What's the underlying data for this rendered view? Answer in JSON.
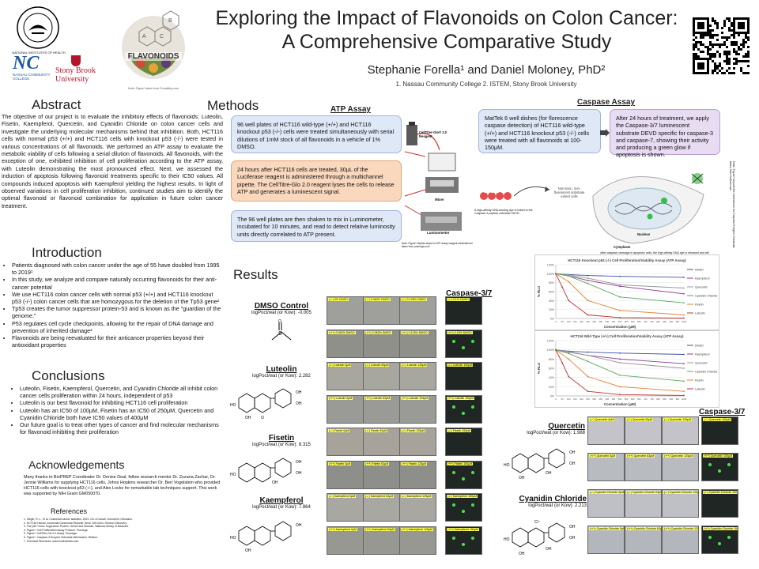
{
  "header": {
    "title_line1": "Exploring the Impact of Flavonoids on Colon Cancer:",
    "title_line2": "A Comprehensive Comparative Study",
    "authors": "Stephanie Forella¹ and Daniel Moloney, PhD²",
    "affiliations": "1.  Nassau Community College  2. ISTEM, Stony Brook University",
    "logo_nih": "NATIONAL INSTITUTES OF HEALTH",
    "logo_ncc_letters": "NC",
    "logo_ncc": "NASSAU COMMUNITY COLLEGE",
    "logo_sbu_line1": "Stony Brook",
    "logo_sbu_line2": "University",
    "logo_flavonoids": "FLAVONOIDS",
    "flavonoid_caption": "Note: Figure* taken from Freepikhq.com"
  },
  "abstract": {
    "heading": "Abstract",
    "text": "The objective of our project is to evaluate the inhibitory effects of flavonoids: Luteolin, Fisetin, Kaempferol, Quercetin, and Cyanidin Chloride on colon cancer cells and investigate the underlying molecular mechanisms behind that inhibition. Both, HCT116 cells with normal p53 (+/+) and HCT116 cells with knockout p53 (-/-) were tested in various concentrations of all flavonoids. We performed an ATP assay to evaluate the metabolic viability of cells following a serial dilution of flavonoids. All flavonoids, with the exception of one, exhibited inhibition of cell proliferation according to the ATP assay, with Luteolin demonstrating the most pronounced effect. Next, we assessed the induction of apoptosis following flavonoid treatments specific to their IC50 values. All compounds induced apoptosis with Kaempferol yielding the highest results. In light of observed variations in cell proliferation inhibition, continued studies aim to identify the optimal flavonoid or flavonoid combination for application in future colon cancer treatment."
  },
  "introduction": {
    "heading": "Introduction",
    "items": [
      "Patients diagnosed with colon cancer under the age of 55 have doubled from 1995 to 2019¹",
      "In this study, we analyze and compare naturally occurring flavonoids for their anti-cancer potential",
      "We use HCT116 colon cancer cells with normal p53 (+/+) and HCT116 knockout p53 (-/-) colon cancer cells that are homozygous for the deletion of the Tp53 gene²",
      "Tp53 creates the tumor suppressor protein-53 and is known as the \"guardian of the genome.\"",
      "P53 regulates cell cycle checkpoints, allowing for the repair of DNA damage and prevention of inherited damage³",
      "Flavonoids are being reevaluated for their anticancer properties beyond their antioxidant properties"
    ]
  },
  "conclusions": {
    "heading": "Conclusions",
    "items": [
      "Luteolin, Fisetin, Kaempferol, Quercetin, and Cyanidin Chloride all inhibit colon cancer cells proliferation within 24 hours, independent of p53",
      "Luteolin is our best flavonoid for inhibiting HCT116 cell proliferation",
      "Luteolin has an IC50 of 100μM, Fisetin has an IC50 of 250μM, Quercetin and Cyanidin Chloride both have IC50 values of 400μM",
      "Our future goal is to treat other types of cancer and find molecular mechanisms for flavonoid inhibiting their proliferation"
    ]
  },
  "acknowledgements": {
    "heading": "Acknowledgements",
    "text": "Many thanks to BioPREP Coordinator Dr. Denise Deal, fellow research mentor Dr. Zuzana Zachar, Dr. Jennie Williams for supplying HCT116 cells, Johns Hopkins researcher Dr. Bert Vogelstein who provided HCT116 cells with knockout p53 (-/-), and Alex Locke for remarkable lab techniques support. This work was supported by NIH Grant GM050070."
  },
  "references": {
    "heading": "References",
    "items": [
      "1. Siegel, R. L., et al. Colorectal cancer statistics, 2023. CA: A Cancer Journal for Clinicians.",
      "2. HCT116 Human Colorectal Carcinoma Reporter Gene Cell Lines. Horizon Discovery.",
      "3. The p53 Tumor Suppressor Protein. Genes and Disease. National Library of Medicine.",
      "4. Figure*: Cell Proliferation Assay Protocol. Promega.",
      "5. Figure*: CellTiter-Glo 2.0 Assay. Promega.",
      "6. Figure*: Caspase-3 Enzyme Substrate Mechanism. Biotium.",
      "7. Chemical Structures: www.molinstincts.com"
    ]
  },
  "methods": {
    "heading": "Methods",
    "atp_title": "ATP Assay",
    "step1": "96 well plates of HCT116 wild-type (+/+) and HCT116 knockout p53 (-/-) cells were treated simultaneously with serial dilutions of 1mM stock of all flavonoids in a vehicle of 1% DMSO.",
    "step2": "24 hours after HCT116 cells are treated, 30μL of the Luciferase reagent is administered through a multichannel pipette. The CellTitre-Glo 2.0 reagent lyses the cells to release ATP and generates a luminescent signal.",
    "step3": "The 96 well plates are then shaken to mix in Luminometer, incubated for 10 minutes, and read to detect relative luminosity units directly correlated to ATP present.",
    "reagent_label": "CellTiter-Glo® 2.0 Reagent",
    "mixer_label": "Mixer",
    "luminometer_label": "Luminometer",
    "atp_note": "Note: Figure* depicts steps for ATP assay reagent administered taken from promega.com",
    "caspase_title": "Caspase Assay",
    "caspase1": "MatTek 6 well dishes (for florescence caspase detection) of HCT116 wild-type (+/+) and HCT116 knockout p53 (-/-) cells were treated with all flavonoids at 100-150μM.",
    "caspase2": "After 24 hours of treatment, we apply the Caspase-3/7 luminescent substrate DEVD specific for caspase-3 and caspase-7, showing their activity and producing a green glow if apoptosis is shown.",
    "devd": "DEVD",
    "devd_caption": "A high-affinity DNA-binding dye is linked to the Caspase-3 peptide substrate DEVD",
    "nonfluor": "Non-toxic, non-fluorescent substrate enters cells",
    "nucleus": "Nucleus",
    "cytoplasm": "Cytoplasm",
    "after_cleavage": "After caspase cleavage in apoptotic cells, the high-affinity DNA dye is released and will fluoresce upon binding to DNA",
    "side_note": "Note: Figure* depicts the mechanism for Caspase Enzyme Substrate taken from biotium.com"
  },
  "results": {
    "heading": "Results",
    "caspase_header": "Caspase-3/7",
    "caspase_header2": "Caspase-3/7",
    "compounds": [
      {
        "name": "DMSO Control",
        "logp": "logPoct/wat (or Kow): -0.005"
      },
      {
        "name": "Luteolin",
        "logp": "logPoct/wat (or Kow): 2.282"
      },
      {
        "name": "Fisetin",
        "logp": "logPoct/wat (or Kow): 8.315"
      },
      {
        "name": "Kaempferol",
        "logp": "logPoct/wat (or Kow): 7.864"
      },
      {
        "name": "Quercetin",
        "logp": "logPoct/wat (or Kow): 1.988"
      },
      {
        "name": "Cyanidin Chloride",
        "logp": "logPoct/wat (or Kow): 2.213"
      }
    ],
    "rows": [
      [
        "(-/-) 0% DMSO",
        "(-/-) 0.063% DMSO",
        "(-/-) 0.125% DMSO",
        "(-/-) 0.1% DMSO"
      ],
      [
        "(+/+) 0.063% DMSO",
        "(+/+) 0.063% DMSO",
        "(+/+) 0.125% DMSO",
        "(+/+) 0.15% DMSO"
      ],
      [
        "(-/-) Luteolin 0μM",
        "(-/-) Luteolin 63μM",
        "(-/-) Luteolin 125μM",
        "(-/-) Luteolin 150μM"
      ],
      [
        "(+/+) Luteolin 0μM",
        "(+/+) Luteolin 63μM",
        "(+/+) Luteolin 125μM",
        "(+/+) Luteolin 100μM"
      ],
      [
        "(-/-) Fisetin 0μM",
        "(-/-) Fisetin 63μM",
        "(-/-) Fisetin 125μM",
        "(-/-) Fisetin 150μM"
      ],
      [
        "(+/+) Fisetin 0μM",
        "(+/+) Fisetin 63μM",
        "(+/+) Fisetin 125μM",
        "(+/+) Fisetin 150μM"
      ],
      [
        "(-/-) Kaempferol 0μM",
        "(-/-) Kaempferol 63μM",
        "(-/-) Kaempferol 125μM",
        "(-/-) Kaempferol 150μM"
      ],
      [
        "(+/+) Kaempferol 0μM",
        "(+/+) Kaempferol 63μM",
        "(+/+) Kaempferol 125μM",
        "(+/+) Kaempferol 150μM"
      ]
    ],
    "rows_right": [
      [
        "(-/-) Quercetin 0μM",
        "(-/-) Quercetin 63μM",
        "(-/-) Quercetin 125μM",
        "(-/-) Quercetin 150μM"
      ],
      [
        "(+/+) Quercetin 0μM",
        "(+/+) Quercetin 63μM",
        "(+/+) Quercetin 125μM",
        "(+/+) Quercetin 150μM"
      ],
      [
        "(-/-) Cyanidin Chloride 0μM",
        "(-/-) Cyanidin Chloride 63μM",
        "(-/-) Cyanidin Chloride 125μM",
        "(-/-) Cyanidin Chloride 100μM"
      ],
      [
        "(+/+) Cyanidin Chloride 0μM",
        "(+/+) Cyanidin Chloride 63μM",
        "(+/+) Cyanidin Chloride 125μM",
        "(+/+) Cyanidin Chloride 150μM"
      ]
    ],
    "row_colors": [
      "#9fa09b",
      "#8f908a",
      "#a8a79f",
      "#9a9b96",
      "#a7a39a",
      "#8e8f8a",
      "#a8a7a1",
      "#979892"
    ],
    "right_colors": [
      "#c4c3c9",
      "#b8bbc0",
      "#bfc0c6",
      "#b3b6bc"
    ]
  },
  "chart_data": [
    {
      "type": "line",
      "title": "HCT116 Knockout p53 (-/-) Cell Proliferation/Viability Assay (ATP Assay)",
      "xlabel": "Concentration (μM)",
      "ylabel": "% RLU",
      "x": [
        0,
        50,
        100,
        150,
        200,
        250,
        300,
        350,
        400,
        450,
        500,
        550,
        600,
        650,
        700,
        750,
        800,
        850,
        900,
        950,
        1000
      ],
      "ylim": [
        0,
        120
      ],
      "series": [
        {
          "name": "DMSO",
          "color": "#3b4fa0",
          "points": [
            [
              0,
              100
            ],
            [
              100,
              98
            ],
            [
              250,
              96
            ],
            [
              500,
              94
            ],
            [
              1000,
              92
            ]
          ]
        },
        {
          "name": "Kaempferol",
          "color": "#8a3c8f",
          "points": [
            [
              0,
              100
            ],
            [
              100,
              95
            ],
            [
              250,
              85
            ],
            [
              500,
              72
            ],
            [
              1000,
              55
            ]
          ]
        },
        {
          "name": "Quercetin",
          "color": "#999999",
          "points": [
            [
              0,
              100
            ],
            [
              100,
              97
            ],
            [
              250,
              90
            ],
            [
              500,
              75
            ],
            [
              1000,
              68
            ]
          ]
        },
        {
          "name": "Cyanidin Chloride",
          "color": "#5aa85a",
          "points": [
            [
              0,
              100
            ],
            [
              100,
              95
            ],
            [
              250,
              78
            ],
            [
              500,
              48
            ],
            [
              1000,
              35
            ]
          ]
        },
        {
          "name": "Fisetin",
          "color": "#e08030",
          "points": [
            [
              0,
              100
            ],
            [
              100,
              82
            ],
            [
              250,
              40
            ],
            [
              500,
              18
            ],
            [
              1000,
              8
            ]
          ]
        },
        {
          "name": "Luteolin",
          "color": "#c0302f",
          "points": [
            [
              0,
              100
            ],
            [
              50,
              70
            ],
            [
              100,
              40
            ],
            [
              250,
              8
            ],
            [
              500,
              2
            ],
            [
              1000,
              1
            ]
          ]
        }
      ]
    },
    {
      "type": "line",
      "title": "HCT116 Wild Type (+/+) Cell Proliferation/Viability Assay (ATP Assay)",
      "xlabel": "Concentration (μM)",
      "ylabel": "% RLU",
      "x": [
        0,
        50,
        100,
        150,
        200,
        250,
        300,
        350,
        400,
        450,
        500,
        550,
        600,
        650,
        700,
        750,
        800,
        850,
        900,
        950,
        1000
      ],
      "ylim": [
        0,
        120
      ],
      "series": [
        {
          "name": "DMSO",
          "color": "#3b4fa0",
          "points": [
            [
              0,
              100
            ],
            [
              100,
              97
            ],
            [
              250,
              95
            ],
            [
              500,
              93
            ],
            [
              1000,
              90
            ]
          ]
        },
        {
          "name": "Kaempferol",
          "color": "#8a3c8f",
          "points": [
            [
              0,
              100
            ],
            [
              100,
              95
            ],
            [
              250,
              88
            ],
            [
              500,
              80
            ],
            [
              1000,
              70
            ]
          ]
        },
        {
          "name": "Quercetin",
          "color": "#999999",
          "points": [
            [
              0,
              100
            ],
            [
              100,
              96
            ],
            [
              250,
              88
            ],
            [
              500,
              72
            ],
            [
              1000,
              60
            ]
          ]
        },
        {
          "name": "Cyanidin Chloride",
          "color": "#5aa85a",
          "points": [
            [
              0,
              100
            ],
            [
              100,
              92
            ],
            [
              250,
              75
            ],
            [
              500,
              45
            ],
            [
              1000,
              32
            ]
          ]
        },
        {
          "name": "Fisetin",
          "color": "#e08030",
          "points": [
            [
              0,
              100
            ],
            [
              100,
              80
            ],
            [
              250,
              42
            ],
            [
              500,
              20
            ],
            [
              1000,
              10
            ]
          ]
        },
        {
          "name": "Luteolin",
          "color": "#c0302f",
          "points": [
            [
              0,
              100
            ],
            [
              50,
              72
            ],
            [
              100,
              42
            ],
            [
              250,
              10
            ],
            [
              500,
              3
            ],
            [
              1000,
              1
            ]
          ]
        }
      ]
    }
  ]
}
